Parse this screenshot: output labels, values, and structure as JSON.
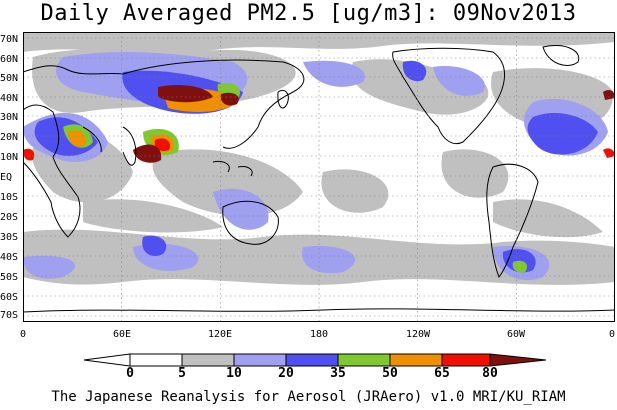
{
  "title": "Daily Averaged PM2.5 [ug/m3]: 09Nov2013",
  "lat_labels": [
    "70N",
    "60N",
    "50N",
    "40N",
    "30N",
    "20N",
    "10N",
    "EQ",
    "10S",
    "20S",
    "30S",
    "40S",
    "50S",
    "60S",
    "70S"
  ],
  "lon_labels": [
    "0",
    "60E",
    "120E",
    "180",
    "120W",
    "60W",
    "0"
  ],
  "legend": {
    "levels": [
      "0",
      "5",
      "10",
      "20",
      "35",
      "50",
      "65",
      "80"
    ],
    "colors": [
      "#ffffff",
      "#c0c0c0",
      "#a0a0f0",
      "#5050f0",
      "#80c830",
      "#f09000",
      "#f01000",
      "#801010"
    ]
  },
  "footer": "The Japanese Reanalysis for Aerosol (JRAero) v1.0 MRI/KU_RIAM"
}
